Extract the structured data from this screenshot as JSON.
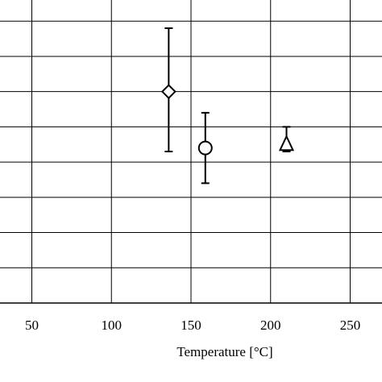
{
  "chart_data": {
    "type": "scatter",
    "title": "",
    "xlabel": "Temperature [°C]",
    "ylabel": "",
    "xlim": [
      30,
      270
    ],
    "ylim": [
      0,
      8.6
    ],
    "x_ticks": [
      50,
      100,
      150,
      200,
      250
    ],
    "x_tick_labels": [
      "50",
      "100",
      "150",
      "200",
      "250"
    ],
    "y_gridlines": [
      1,
      2,
      3,
      4,
      5,
      6,
      7,
      8
    ],
    "grid": true,
    "legend": "none",
    "points": [
      {
        "marker": "diamond",
        "x": 136,
        "y": 6.0,
        "y_low": 4.3,
        "y_high": 7.8
      },
      {
        "marker": "circle",
        "x": 159,
        "y": 4.4,
        "y_low": 3.4,
        "y_high": 5.4
      },
      {
        "marker": "triangle",
        "x": 210,
        "y": 4.5,
        "y_low": 4.3,
        "y_high": 5.0
      }
    ],
    "colors": {
      "line": "#000000",
      "grid": "#000000",
      "marker_fill": "#ffffff"
    }
  }
}
